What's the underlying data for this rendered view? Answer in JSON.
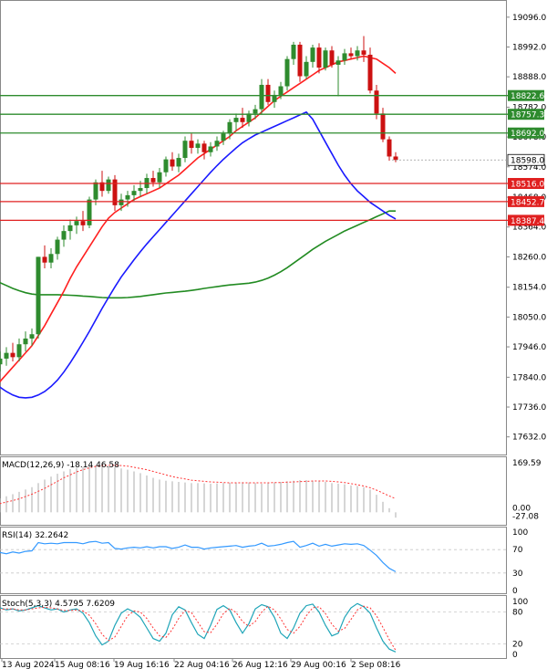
{
  "chart_data": [
    {
      "type": "candlestick",
      "price_axis_ticks": [
        "19096.0",
        "18992.0",
        "18888.0",
        "18782.0",
        "18678.0",
        "18574.0",
        "18468.0",
        "18364.0",
        "18260.0",
        "18154.0",
        "18050.0",
        "17946.0",
        "17840.0",
        "17736.0",
        "17632.0"
      ],
      "ylim": [
        17580,
        19140
      ],
      "levels": [
        {
          "value": 18822.6,
          "label": "18822.6",
          "color": "#2e8b2e"
        },
        {
          "value": 18757.3,
          "label": "18757.3",
          "color": "#2e8b2e"
        },
        {
          "value": 18692.0,
          "label": "18692.0",
          "color": "#2e8b2e"
        },
        {
          "value": 18516.0,
          "label": "18516.0",
          "color": "#e02020"
        },
        {
          "value": 18452.7,
          "label": "18452.7",
          "color": "#e02020"
        },
        {
          "value": 18387.4,
          "label": "18387.4",
          "color": "#e02020"
        }
      ],
      "current_price": {
        "value": 18598.0,
        "label": "18598.0"
      },
      "candles": [
        {
          "o": 17830,
          "h": 17870,
          "l": 17770,
          "c": 17845
        },
        {
          "o": 17845,
          "h": 17880,
          "l": 17815,
          "c": 17825
        },
        {
          "o": 17825,
          "h": 17870,
          "l": 17800,
          "c": 17860
        },
        {
          "o": 17860,
          "h": 17900,
          "l": 17835,
          "c": 17885
        },
        {
          "o": 17885,
          "h": 17930,
          "l": 17860,
          "c": 17905
        },
        {
          "o": 17905,
          "h": 17945,
          "l": 17880,
          "c": 17925
        },
        {
          "o": 17925,
          "h": 17960,
          "l": 17895,
          "c": 17910
        },
        {
          "o": 17910,
          "h": 17975,
          "l": 17895,
          "c": 17955
        },
        {
          "o": 17955,
          "h": 18000,
          "l": 17930,
          "c": 17975
        },
        {
          "o": 17975,
          "h": 18010,
          "l": 17950,
          "c": 17990
        },
        {
          "o": 17990,
          "h": 18260,
          "l": 17975,
          "c": 18260
        },
        {
          "o": 18260,
          "h": 18300,
          "l": 18220,
          "c": 18240
        },
        {
          "o": 18240,
          "h": 18290,
          "l": 18220,
          "c": 18270
        },
        {
          "o": 18270,
          "h": 18330,
          "l": 18250,
          "c": 18320
        },
        {
          "o": 18320,
          "h": 18370,
          "l": 18295,
          "c": 18350
        },
        {
          "o": 18350,
          "h": 18390,
          "l": 18320,
          "c": 18370
        },
        {
          "o": 18370,
          "h": 18400,
          "l": 18340,
          "c": 18385
        },
        {
          "o": 18385,
          "h": 18420,
          "l": 18350,
          "c": 18370
        },
        {
          "o": 18370,
          "h": 18470,
          "l": 18360,
          "c": 18460
        },
        {
          "o": 18460,
          "h": 18530,
          "l": 18440,
          "c": 18520
        },
        {
          "o": 18520,
          "h": 18560,
          "l": 18470,
          "c": 18490
        },
        {
          "o": 18490,
          "h": 18540,
          "l": 18480,
          "c": 18530
        },
        {
          "o": 18530,
          "h": 18545,
          "l": 18420,
          "c": 18440
        },
        {
          "o": 18440,
          "h": 18480,
          "l": 18420,
          "c": 18460
        },
        {
          "o": 18460,
          "h": 18490,
          "l": 18435,
          "c": 18475
        },
        {
          "o": 18475,
          "h": 18510,
          "l": 18455,
          "c": 18490
        },
        {
          "o": 18490,
          "h": 18525,
          "l": 18470,
          "c": 18500
        },
        {
          "o": 18500,
          "h": 18550,
          "l": 18480,
          "c": 18535
        },
        {
          "o": 18535,
          "h": 18560,
          "l": 18505,
          "c": 18520
        },
        {
          "o": 18520,
          "h": 18570,
          "l": 18500,
          "c": 18555
        },
        {
          "o": 18555,
          "h": 18610,
          "l": 18540,
          "c": 18600
        },
        {
          "o": 18600,
          "h": 18625,
          "l": 18560,
          "c": 18575
        },
        {
          "o": 18575,
          "h": 18620,
          "l": 18555,
          "c": 18605
        },
        {
          "o": 18605,
          "h": 18680,
          "l": 18590,
          "c": 18665
        },
        {
          "o": 18665,
          "h": 18690,
          "l": 18620,
          "c": 18640
        },
        {
          "o": 18640,
          "h": 18670,
          "l": 18620,
          "c": 18655
        },
        {
          "o": 18655,
          "h": 18665,
          "l": 18600,
          "c": 18625
        },
        {
          "o": 18625,
          "h": 18660,
          "l": 18610,
          "c": 18645
        },
        {
          "o": 18645,
          "h": 18680,
          "l": 18630,
          "c": 18665
        },
        {
          "o": 18665,
          "h": 18700,
          "l": 18650,
          "c": 18690
        },
        {
          "o": 18690,
          "h": 18740,
          "l": 18670,
          "c": 18730
        },
        {
          "o": 18730,
          "h": 18760,
          "l": 18700,
          "c": 18745
        },
        {
          "o": 18745,
          "h": 18780,
          "l": 18710,
          "c": 18730
        },
        {
          "o": 18730,
          "h": 18770,
          "l": 18715,
          "c": 18760
        },
        {
          "o": 18760,
          "h": 18790,
          "l": 18740,
          "c": 18775
        },
        {
          "o": 18775,
          "h": 18880,
          "l": 18760,
          "c": 18860
        },
        {
          "o": 18860,
          "h": 18880,
          "l": 18790,
          "c": 18800
        },
        {
          "o": 18800,
          "h": 18840,
          "l": 18780,
          "c": 18825
        },
        {
          "o": 18825,
          "h": 18870,
          "l": 18810,
          "c": 18855
        },
        {
          "o": 18855,
          "h": 18960,
          "l": 18840,
          "c": 18950
        },
        {
          "o": 18950,
          "h": 19010,
          "l": 18930,
          "c": 19000
        },
        {
          "o": 19000,
          "h": 19010,
          "l": 18870,
          "c": 18890
        },
        {
          "o": 18890,
          "h": 18960,
          "l": 18880,
          "c": 18940
        },
        {
          "o": 18940,
          "h": 19000,
          "l": 18920,
          "c": 18990
        },
        {
          "o": 18990,
          "h": 19005,
          "l": 18900,
          "c": 18920
        },
        {
          "o": 18920,
          "h": 18990,
          "l": 18910,
          "c": 18980
        },
        {
          "o": 18980,
          "h": 18995,
          "l": 18920,
          "c": 18930
        },
        {
          "o": 18930,
          "h": 18960,
          "l": 18820,
          "c": 18945
        },
        {
          "o": 18945,
          "h": 18985,
          "l": 18930,
          "c": 18970
        },
        {
          "o": 18970,
          "h": 18990,
          "l": 18950,
          "c": 18960
        },
        {
          "o": 18960,
          "h": 18995,
          "l": 18945,
          "c": 18980
        },
        {
          "o": 18980,
          "h": 19030,
          "l": 18940,
          "c": 18965
        },
        {
          "o": 18965,
          "h": 18990,
          "l": 18830,
          "c": 18840
        },
        {
          "o": 18840,
          "h": 18860,
          "l": 18740,
          "c": 18760
        },
        {
          "o": 18760,
          "h": 18780,
          "l": 18660,
          "c": 18670
        },
        {
          "o": 18670,
          "h": 18680,
          "l": 18595,
          "c": 18610
        },
        {
          "o": 18610,
          "h": 18625,
          "l": 18590,
          "c": 18598
        }
      ],
      "ma_red": [
        17745,
        17765,
        17785,
        17805,
        17825,
        17850,
        17875,
        17900,
        17925,
        17950,
        17985,
        18020,
        18060,
        18100,
        18140,
        18185,
        18225,
        18260,
        18295,
        18330,
        18365,
        18395,
        18415,
        18430,
        18445,
        18460,
        18470,
        18480,
        18490,
        18500,
        18515,
        18530,
        18545,
        18565,
        18585,
        18605,
        18620,
        18635,
        18650,
        18665,
        18680,
        18700,
        18715,
        18730,
        18745,
        18765,
        18785,
        18805,
        18820,
        18835,
        18850,
        18865,
        18880,
        18895,
        18910,
        18920,
        18930,
        18940,
        18945,
        18950,
        18955,
        18960,
        18955,
        18950,
        18935,
        18920,
        18900
      ],
      "ma_blue": [
        17880,
        17862,
        17845,
        17825,
        17805,
        17790,
        17778,
        17770,
        17768,
        17770,
        17778,
        17790,
        17808,
        17830,
        17858,
        17890,
        17925,
        17962,
        18000,
        18040,
        18080,
        18118,
        18155,
        18190,
        18220,
        18250,
        18278,
        18305,
        18330,
        18355,
        18380,
        18405,
        18430,
        18455,
        18480,
        18505,
        18530,
        18555,
        18578,
        18600,
        18620,
        18640,
        18658,
        18672,
        18685,
        18695,
        18705,
        18715,
        18725,
        18735,
        18745,
        18755,
        18765,
        18740,
        18700,
        18660,
        18620,
        18580,
        18545,
        18515,
        18490,
        18470,
        18450,
        18435,
        18420,
        18405,
        18392
      ],
      "ma_green": [
        18150,
        18150,
        18150,
        18150,
        18150,
        18150,
        18150,
        18150,
        18150,
        18150,
        18150,
        18150,
        18150,
        18150,
        18150,
        18150,
        18150,
        18150,
        18150,
        18150,
        18150,
        18150,
        18150,
        18150,
        18150,
        18150,
        18150,
        18150,
        18150,
        18150,
        18150,
        18150,
        18150,
        18150,
        18150,
        18150,
        18150,
        18150,
        18150,
        18150,
        18150,
        18150,
        18150,
        18150,
        18150,
        18150,
        18150,
        18150,
        18150,
        18150,
        18150,
        18150,
        18150,
        18150,
        18150,
        18150,
        18150,
        18150,
        18150,
        18150,
        18150,
        18150,
        18150,
        18150,
        18150,
        18150,
        18150
      ],
      "ma_green_shape": [
        18240,
        18220,
        18200,
        18185,
        18170,
        18160,
        18150,
        18142,
        18135,
        18130,
        18128,
        18128,
        18128,
        18128,
        18127,
        18126,
        18125,
        18123,
        18122,
        18120,
        18118,
        18117,
        18117,
        18117,
        18118,
        18120,
        18122,
        18125,
        18128,
        18131,
        18134,
        18136,
        18138,
        18140,
        18143,
        18146,
        18150,
        18153,
        18156,
        18159,
        18162,
        18164,
        18166,
        18168,
        18172,
        18178,
        18186,
        18196,
        18208,
        18222,
        18238,
        18254,
        18270,
        18286,
        18300,
        18314,
        18326,
        18338,
        18350,
        18360,
        18370,
        18380,
        18390,
        18400,
        18410,
        18420,
        18420
      ]
    },
    {
      "type": "bar",
      "indicator": "MACD",
      "header": "MACD(12,26,9) -18.14 46.58",
      "axis_labels": {
        "top": "169.59",
        "zero": "0.00",
        "bottom": "-27.08"
      },
      "ylim": [
        -27.08,
        169.59
      ],
      "histogram": [
        28,
        32,
        36,
        42,
        48,
        55,
        62,
        70,
        78,
        86,
        100,
        112,
        122,
        132,
        140,
        148,
        152,
        155,
        158,
        160,
        159,
        158,
        154,
        150,
        146,
        140,
        134,
        126,
        118,
        112,
        108,
        106,
        104,
        102,
        100,
        100,
        99,
        98,
        99,
        100,
        101,
        102,
        103,
        102,
        100,
        98,
        100,
        102,
        104,
        106,
        108,
        110,
        110,
        108,
        106,
        104,
        100,
        98,
        96,
        92,
        90,
        86,
        78,
        60,
        36,
        14,
        -18.14
      ],
      "signal": [
        14,
        18,
        22,
        26,
        30,
        35,
        40,
        46,
        54,
        62,
        72,
        82,
        94,
        106,
        118,
        128,
        138,
        146,
        152,
        157,
        160,
        161,
        161,
        160,
        158,
        154,
        150,
        146,
        140,
        134,
        128,
        122,
        118,
        114,
        110,
        108,
        106,
        104,
        103,
        102,
        101,
        101,
        101,
        101,
        101,
        101,
        101,
        102,
        102,
        103,
        104,
        105,
        106,
        107,
        107,
        107,
        106,
        104,
        102,
        98,
        94,
        90,
        84,
        76,
        66,
        56,
        46.58
      ]
    },
    {
      "type": "line",
      "indicator": "RSI",
      "header": "RSI(14) 32.2642",
      "axis_labels": [
        "100",
        "70",
        "30",
        "0"
      ],
      "ylim": [
        0,
        100
      ],
      "values": [
        58,
        60,
        62,
        62,
        65,
        63,
        66,
        64,
        67,
        68,
        82,
        80,
        81,
        80,
        82,
        82,
        82,
        80,
        83,
        84,
        81,
        82,
        72,
        71,
        73,
        74,
        73,
        75,
        73,
        75,
        75,
        72,
        74,
        78,
        74,
        74,
        71,
        73,
        74,
        75,
        76,
        77,
        74,
        76,
        77,
        81,
        76,
        77,
        79,
        82,
        84,
        74,
        77,
        81,
        76,
        79,
        76,
        78,
        80,
        79,
        80,
        77,
        69,
        60,
        48,
        38,
        32.2642
      ]
    },
    {
      "type": "line",
      "indicator": "Stochastic",
      "header": "Stoch(5,3,3) 4.5795 7.6209",
      "axis_labels": [
        "100",
        "80",
        "20",
        "0"
      ],
      "ylim": [
        0,
        100
      ],
      "main": [
        60,
        72,
        80,
        85,
        88,
        84,
        86,
        82,
        84,
        88,
        92,
        88,
        84,
        86,
        80,
        84,
        86,
        78,
        60,
        35,
        18,
        25,
        55,
        78,
        86,
        80,
        70,
        50,
        30,
        25,
        40,
        75,
        90,
        84,
        60,
        38,
        30,
        55,
        85,
        92,
        84,
        60,
        40,
        58,
        86,
        94,
        90,
        70,
        40,
        30,
        50,
        78,
        92,
        95,
        80,
        55,
        35,
        40,
        70,
        88,
        96,
        90,
        78,
        50,
        25,
        10,
        4.5795
      ],
      "signal": [
        55,
        65,
        74,
        80,
        85,
        86,
        86,
        84,
        84,
        86,
        88,
        89,
        88,
        86,
        83,
        83,
        84,
        82,
        74,
        58,
        38,
        26,
        33,
        53,
        73,
        82,
        80,
        68,
        50,
        35,
        32,
        47,
        68,
        83,
        79,
        61,
        43,
        41,
        57,
        77,
        87,
        79,
        62,
        53,
        62,
        80,
        91,
        84,
        67,
        47,
        40,
        53,
        73,
        88,
        90,
        77,
        57,
        44,
        49,
        66,
        84,
        91,
        88,
        73,
        51,
        28,
        7.6209
      ]
    }
  ],
  "time_axis_labels": [
    "13 Aug 2024",
    "15 Aug 08:16",
    "19 Aug 16:16",
    "22 Aug 04:16",
    "26 Aug 12:16",
    "29 Aug 00:16",
    "2 Sep 08:16"
  ],
  "colors": {
    "bull": "#2e8b2e",
    "bear": "#cc1111",
    "ma_red": "#ff2020",
    "ma_blue": "#1a1aff",
    "ma_green": "#228b22",
    "macd_bar": "#bbbbbb",
    "macd_signal": "#ff3333",
    "rsi": "#3399ff",
    "stoch_main": "#1fa5b8",
    "stoch_signal": "#ff3333"
  }
}
